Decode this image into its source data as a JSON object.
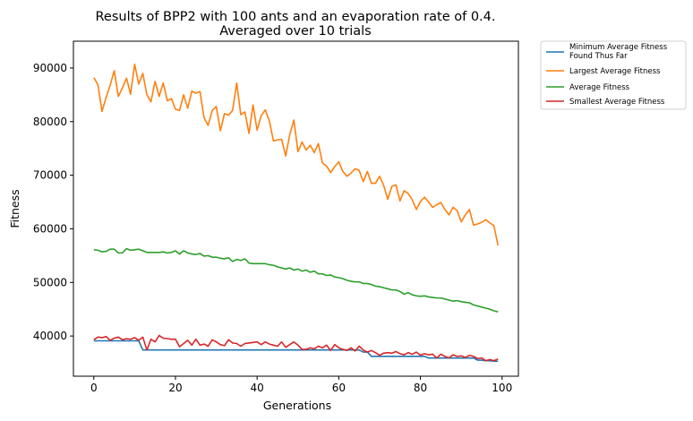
{
  "chart_data": {
    "type": "line",
    "title": [
      "Results of BPP2 with 100 ants and an evaporation rate of 0.4.",
      "Averaged over 10 trials"
    ],
    "xlabel": "Generations",
    "ylabel": "Fitness",
    "xlim": [
      -5,
      104
    ],
    "ylim": [
      32500,
      95000
    ],
    "xticks": [
      0,
      20,
      40,
      60,
      80,
      100
    ],
    "yticks": [
      40000,
      50000,
      60000,
      70000,
      80000,
      90000
    ],
    "xtick_labels": [
      "0",
      "20",
      "40",
      "60",
      "80",
      "100"
    ],
    "ytick_labels": [
      "40000",
      "50000",
      "60000",
      "70000",
      "80000",
      "90000"
    ],
    "legend_placement": "outside upper right",
    "grid": false,
    "series": [
      {
        "name_lines": [
          "Minimum Average Fitness",
          "Found Thus Far"
        ],
        "color": "#1f77b4",
        "values": [
          39100,
          39100,
          39100,
          39100,
          39100,
          39100,
          39100,
          39100,
          39100,
          39100,
          39100,
          39100,
          37400,
          37400,
          37400,
          37400,
          37400,
          37400,
          37400,
          37400,
          37400,
          37400,
          37400,
          37400,
          37400,
          37400,
          37400,
          37400,
          37400,
          37400,
          37400,
          37400,
          37400,
          37400,
          37400,
          37400,
          37400,
          37400,
          37400,
          37400,
          37400,
          37400,
          37400,
          37400,
          37400,
          37400,
          37400,
          37400,
          37400,
          37400,
          37400,
          37400,
          37400,
          37400,
          37400,
          37400,
          37400,
          37400,
          37400,
          37400,
          37400,
          37400,
          37400,
          37400,
          37400,
          37400,
          37000,
          37000,
          36200,
          36200,
          36200,
          36200,
          36200,
          36200,
          36200,
          36200,
          36200,
          36200,
          36200,
          36200,
          36200,
          36200,
          35900,
          35900,
          35900,
          35900,
          35900,
          35900,
          35900,
          35900,
          35900,
          35900,
          35900,
          35900,
          35500,
          35500,
          35400,
          35400,
          35300,
          35300
        ]
      },
      {
        "name": "Largest Average Fitness",
        "color": "#ff7f0e",
        "values": [
          88200,
          86900,
          81900,
          84500,
          86800,
          89500,
          84700,
          86300,
          88100,
          85100,
          90700,
          87000,
          89000,
          85000,
          83700,
          87500,
          84700,
          87200,
          83900,
          84300,
          82300,
          82100,
          85000,
          82500,
          85700,
          85300,
          85600,
          80700,
          79300,
          82100,
          82800,
          78300,
          81500,
          81200,
          82100,
          87200,
          81300,
          81800,
          77800,
          83100,
          78400,
          81100,
          82200,
          80100,
          76400,
          76600,
          76700,
          73600,
          77600,
          80300,
          74400,
          76200,
          74700,
          75600,
          74200,
          75900,
          72300,
          71700,
          70500,
          71600,
          72500,
          70700,
          69800,
          70400,
          71200,
          70900,
          68800,
          70700,
          68500,
          68500,
          69800,
          68100,
          65500,
          67900,
          68200,
          65200,
          67100,
          66600,
          65400,
          63600,
          65100,
          65900,
          65000,
          64000,
          64500,
          64900,
          63600,
          62600,
          64000,
          63400,
          61300,
          62600,
          63600,
          60700,
          60900,
          61200,
          61700,
          61100,
          60600,
          56900
        ]
      },
      {
        "name": "Average Fitness",
        "color": "#2ca02c",
        "values": [
          56100,
          56000,
          55700,
          55800,
          56200,
          56200,
          55500,
          55500,
          56300,
          56000,
          56100,
          56200,
          55900,
          55600,
          55600,
          55600,
          55600,
          55700,
          55500,
          55600,
          55900,
          55300,
          55900,
          55500,
          55300,
          55200,
          55400,
          54900,
          55000,
          54700,
          54700,
          54500,
          54400,
          54600,
          53900,
          54300,
          54100,
          54400,
          53600,
          53500,
          53500,
          53500,
          53500,
          53300,
          53200,
          52900,
          52700,
          52500,
          52700,
          52300,
          52500,
          52100,
          52300,
          51900,
          52100,
          51600,
          51600,
          51300,
          51400,
          51000,
          50900,
          50700,
          50400,
          50200,
          50100,
          50100,
          49800,
          49800,
          49600,
          49300,
          49200,
          49000,
          48800,
          48600,
          48600,
          48300,
          47800,
          48100,
          47700,
          47500,
          47400,
          47500,
          47300,
          47200,
          47100,
          47100,
          46900,
          46700,
          46500,
          46600,
          46400,
          46300,
          46200,
          45800,
          45600,
          45400,
          45200,
          45000,
          44700,
          44500
        ]
      },
      {
        "name": "Smallest Average Fitness",
        "color": "#d62728",
        "values": [
          39300,
          39800,
          39700,
          39900,
          39200,
          39600,
          39800,
          39300,
          39500,
          39400,
          39700,
          39200,
          39800,
          37400,
          39400,
          38900,
          40100,
          39600,
          39500,
          39400,
          39400,
          38000,
          38600,
          39200,
          38300,
          39400,
          38300,
          38500,
          38100,
          39300,
          38900,
          38400,
          38200,
          39300,
          38700,
          38600,
          38100,
          38600,
          38700,
          38800,
          38900,
          38400,
          38900,
          38500,
          38300,
          38100,
          38900,
          37900,
          38400,
          38900,
          38300,
          37500,
          37500,
          37800,
          37600,
          38100,
          37800,
          38300,
          37300,
          38400,
          37800,
          37500,
          37300,
          37800,
          37200,
          38100,
          37400,
          37000,
          37300,
          36900,
          36400,
          36800,
          36900,
          36800,
          37100,
          36700,
          36500,
          36900,
          36600,
          37000,
          36400,
          36700,
          36500,
          36600,
          35900,
          36600,
          36200,
          35900,
          36500,
          36200,
          36300,
          36000,
          36400,
          36200,
          35800,
          35900,
          35400,
          35600,
          35400,
          35700
        ]
      }
    ]
  }
}
